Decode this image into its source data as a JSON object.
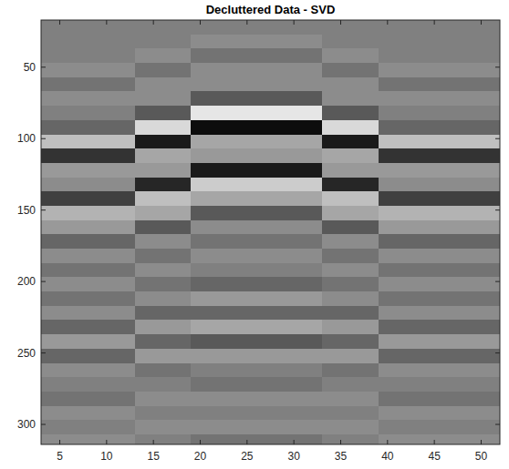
{
  "chart_data": {
    "type": "heatmap",
    "title": "Decluttered Data - SVD",
    "color": "gray",
    "x": [
      4,
      6,
      8,
      10,
      12,
      14,
      16,
      18,
      20,
      22,
      24,
      26,
      28,
      30,
      32,
      34,
      36,
      38,
      40,
      42,
      44,
      46,
      48,
      50,
      52
    ],
    "y": [
      22,
      32,
      42,
      52,
      62,
      72,
      82,
      92,
      102,
      112,
      122,
      132,
      142,
      152,
      162,
      172,
      182,
      192,
      202,
      212,
      222,
      232,
      242,
      252,
      262,
      272,
      282,
      292,
      302,
      312
    ],
    "xlim": [
      3,
      52
    ],
    "ylim": [
      17,
      314
    ],
    "xticks": [
      5,
      10,
      15,
      20,
      25,
      30,
      35,
      40,
      45,
      50
    ],
    "yticks": [
      50,
      100,
      150,
      200,
      250,
      300
    ],
    "clim": [
      -10,
      10
    ],
    "cells": [
      [
        0,
        0,
        0,
        0,
        0,
        0,
        0,
        0,
        0,
        0,
        0,
        0,
        0,
        0,
        0,
        0,
        0,
        0,
        0,
        0,
        0,
        0,
        0,
        0,
        0
      ],
      [
        0,
        0,
        0,
        0,
        0,
        0,
        0,
        0,
        1,
        1,
        1,
        1,
        1,
        1,
        1,
        0,
        0,
        0,
        0,
        0,
        0,
        0,
        0,
        0,
        0
      ],
      [
        0,
        0,
        0,
        0,
        0,
        1,
        1,
        1,
        -1,
        -1,
        -1,
        -1,
        -1,
        -1,
        -1,
        1,
        1,
        1,
        0,
        0,
        0,
        0,
        0,
        0,
        0
      ],
      [
        1,
        1,
        1,
        1,
        1,
        -1,
        -1,
        -1,
        1,
        1,
        1,
        1,
        1,
        1,
        1,
        -1,
        -1,
        -1,
        1,
        1,
        1,
        1,
        1,
        1,
        1
      ],
      [
        -1,
        -1,
        -1,
        -1,
        -1,
        1,
        1,
        1,
        1,
        1,
        1,
        1,
        1,
        1,
        1,
        1,
        1,
        1,
        -1,
        -1,
        -1,
        -1,
        -1,
        -1,
        -1
      ],
      [
        1,
        1,
        1,
        1,
        1,
        1,
        1,
        1,
        -3,
        -3,
        -3,
        -3,
        -3,
        -3,
        -3,
        1,
        1,
        1,
        1,
        1,
        1,
        1,
        1,
        1,
        1
      ],
      [
        0,
        0,
        0,
        0,
        0,
        -3,
        -3,
        -3,
        8,
        8,
        8,
        8,
        8,
        8,
        8,
        -3,
        -3,
        -3,
        0,
        0,
        0,
        0,
        0,
        0,
        0
      ],
      [
        -2,
        -2,
        -2,
        -2,
        -2,
        7,
        7,
        7,
        -9,
        -9,
        -9,
        -9,
        -9,
        -9,
        -9,
        7,
        7,
        7,
        -2,
        -2,
        -2,
        -2,
        -2,
        -2,
        -2
      ],
      [
        5,
        5,
        5,
        5,
        5,
        -8,
        -8,
        -8,
        3,
        3,
        3,
        3,
        3,
        3,
        3,
        -8,
        -8,
        -8,
        5,
        5,
        5,
        5,
        5,
        5,
        5
      ],
      [
        -6,
        -6,
        -6,
        -6,
        -6,
        3,
        3,
        3,
        2,
        2,
        2,
        2,
        2,
        2,
        2,
        3,
        3,
        3,
        -6,
        -6,
        -6,
        -6,
        -6,
        -6,
        -6
      ],
      [
        2,
        2,
        2,
        2,
        2,
        2,
        2,
        2,
        -8,
        -8,
        -8,
        -8,
        -8,
        -8,
        -8,
        2,
        2,
        2,
        2,
        2,
        2,
        2,
        2,
        2,
        2
      ],
      [
        1,
        1,
        1,
        1,
        1,
        -7,
        -7,
        -7,
        6,
        6,
        6,
        6,
        6,
        6,
        6,
        -7,
        -7,
        -7,
        1,
        1,
        1,
        1,
        1,
        1,
        1
      ],
      [
        -5,
        -5,
        -5,
        -5,
        -5,
        5,
        5,
        5,
        3,
        3,
        3,
        3,
        3,
        3,
        3,
        5,
        5,
        5,
        -5,
        -5,
        -5,
        -5,
        -5,
        -5,
        -5
      ],
      [
        4,
        4,
        4,
        4,
        4,
        3,
        3,
        3,
        -3,
        -3,
        -3,
        -3,
        -3,
        -3,
        -3,
        3,
        3,
        3,
        4,
        4,
        4,
        4,
        4,
        4,
        4
      ],
      [
        2,
        2,
        2,
        2,
        2,
        -3,
        -3,
        -3,
        1,
        1,
        1,
        1,
        1,
        1,
        1,
        -3,
        -3,
        -3,
        2,
        2,
        2,
        2,
        2,
        2,
        2
      ],
      [
        -2,
        -2,
        -2,
        -2,
        -2,
        1,
        1,
        1,
        -1,
        -1,
        -1,
        -1,
        -1,
        -1,
        -1,
        1,
        1,
        1,
        -2,
        -2,
        -2,
        -2,
        -2,
        -2,
        -2
      ],
      [
        1,
        1,
        1,
        1,
        1,
        -1,
        -1,
        -1,
        1,
        1,
        1,
        1,
        1,
        1,
        1,
        -1,
        -1,
        -1,
        1,
        1,
        1,
        1,
        1,
        1,
        1
      ],
      [
        -1,
        -1,
        -1,
        -1,
        -1,
        1,
        1,
        1,
        0,
        0,
        0,
        0,
        0,
        0,
        0,
        1,
        1,
        1,
        -1,
        -1,
        -1,
        -1,
        -1,
        -1,
        -1
      ],
      [
        1,
        1,
        1,
        1,
        1,
        -1,
        -1,
        -1,
        -2,
        -2,
        -2,
        -2,
        -2,
        -2,
        -2,
        -1,
        -1,
        -1,
        1,
        1,
        1,
        1,
        1,
        1,
        1
      ],
      [
        -1,
        -1,
        -1,
        -1,
        -1,
        1,
        1,
        1,
        2,
        2,
        2,
        2,
        2,
        2,
        2,
        1,
        1,
        1,
        -1,
        -1,
        -1,
        -1,
        -1,
        -1,
        -1
      ],
      [
        1,
        1,
        1,
        1,
        1,
        -2,
        -2,
        -2,
        -2,
        -2,
        -2,
        -2,
        -2,
        -2,
        -2,
        -2,
        -2,
        -2,
        1,
        1,
        1,
        1,
        1,
        1,
        1
      ],
      [
        -2,
        -2,
        -2,
        -2,
        -2,
        2,
        2,
        2,
        3,
        3,
        3,
        3,
        3,
        3,
        3,
        2,
        2,
        2,
        -2,
        -2,
        -2,
        -2,
        -2,
        -2,
        -2
      ],
      [
        2,
        2,
        2,
        2,
        2,
        -2,
        -2,
        -2,
        -3,
        -3,
        -3,
        -3,
        -3,
        -3,
        -3,
        -2,
        -2,
        -2,
        2,
        2,
        2,
        2,
        2,
        2,
        2
      ],
      [
        -2,
        -2,
        -2,
        -2,
        -2,
        2,
        2,
        2,
        2,
        2,
        2,
        2,
        2,
        2,
        2,
        2,
        2,
        2,
        -2,
        -2,
        -2,
        -2,
        -2,
        -2,
        -2
      ],
      [
        1,
        1,
        1,
        1,
        1,
        -1,
        -1,
        -1,
        0,
        0,
        0,
        0,
        0,
        0,
        0,
        -1,
        -1,
        -1,
        1,
        1,
        1,
        1,
        1,
        1,
        1
      ],
      [
        0,
        0,
        0,
        0,
        0,
        0,
        0,
        0,
        -1,
        -1,
        -1,
        -1,
        -1,
        -1,
        -1,
        0,
        0,
        0,
        0,
        0,
        0,
        0,
        0,
        0,
        0
      ],
      [
        -1,
        -1,
        -1,
        -1,
        -1,
        1,
        1,
        1,
        1,
        1,
        1,
        1,
        1,
        1,
        1,
        1,
        1,
        1,
        -1,
        -1,
        -1,
        -1,
        -1,
        -1,
        -1
      ],
      [
        1,
        1,
        1,
        1,
        1,
        0,
        0,
        0,
        0,
        0,
        0,
        0,
        0,
        0,
        0,
        0,
        0,
        0,
        1,
        1,
        1,
        1,
        1,
        1,
        1
      ],
      [
        0,
        0,
        0,
        0,
        0,
        1,
        1,
        1,
        1,
        1,
        1,
        1,
        1,
        1,
        1,
        1,
        1,
        1,
        0,
        0,
        0,
        0,
        0,
        0,
        0
      ],
      [
        1,
        1,
        1,
        1,
        1,
        0,
        0,
        0,
        -1,
        -1,
        -1,
        -1,
        -1,
        -1,
        -1,
        0,
        0,
        0,
        1,
        1,
        1,
        1,
        1,
        1,
        1
      ]
    ]
  }
}
